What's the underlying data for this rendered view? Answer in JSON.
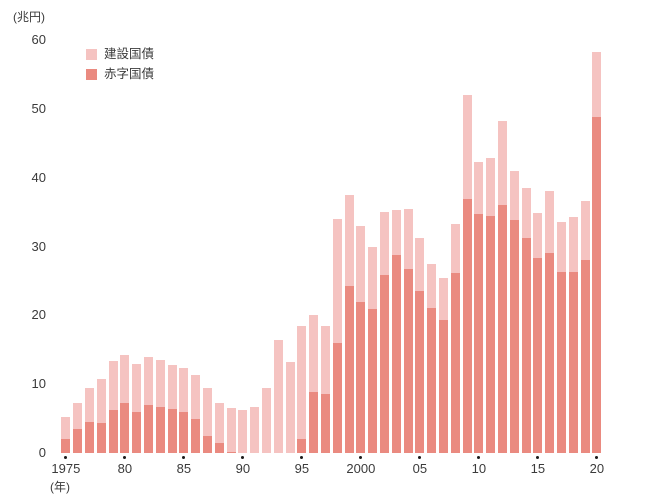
{
  "chart_data": {
    "type": "bar",
    "stacked": true,
    "title": "",
    "unit_label": "(兆円)",
    "x_unit_label": "(年)",
    "ylim": [
      0,
      60
    ],
    "yticks": [
      0,
      10,
      20,
      30,
      40,
      50,
      60
    ],
    "grid": false,
    "legend_position": "top-left",
    "years": [
      1975,
      1976,
      1977,
      1978,
      1979,
      1980,
      1981,
      1982,
      1983,
      1984,
      1985,
      1986,
      1987,
      1988,
      1989,
      1990,
      1991,
      1992,
      1993,
      1994,
      1995,
      1996,
      1997,
      1998,
      1999,
      2000,
      2001,
      2002,
      2003,
      2004,
      2005,
      2006,
      2007,
      2008,
      2009,
      2010,
      2011,
      2012,
      2013,
      2014,
      2015,
      2016,
      2017,
      2018,
      2019,
      2020
    ],
    "xticks": [
      {
        "year": 1975,
        "label": "1975"
      },
      {
        "year": 1980,
        "label": "80"
      },
      {
        "year": 1985,
        "label": "85"
      },
      {
        "year": 1990,
        "label": "90"
      },
      {
        "year": 1995,
        "label": "95"
      },
      {
        "year": 2000,
        "label": "2000"
      },
      {
        "year": 2005,
        "label": "05"
      },
      {
        "year": 2010,
        "label": "10"
      },
      {
        "year": 2015,
        "label": "15"
      },
      {
        "year": 2020,
        "label": "20"
      }
    ],
    "series": [
      {
        "name": "建設国債",
        "color": "#f5c3c1",
        "stack_order": "top",
        "values": [
          3.2,
          3.7,
          5.0,
          6.4,
          7.1,
          7.0,
          7.0,
          7.0,
          6.8,
          6.4,
          6.3,
          6.3,
          6.9,
          5.7,
          6.4,
          6.3,
          6.7,
          9.5,
          16.4,
          13.2,
          16.5,
          11.3,
          10.0,
          18.0,
          13.2,
          11.1,
          9.1,
          9.2,
          6.6,
          8.7,
          7.8,
          6.4,
          6.1,
          7.1,
          15.1,
          7.6,
          8.4,
          12.3,
          7.0,
          7.2,
          6.5,
          8.9,
          7.3,
          8.0,
          8.6,
          9.4
        ]
      },
      {
        "name": "赤字国債",
        "color": "#ea8a80",
        "stack_order": "bottom",
        "values": [
          2.1,
          3.5,
          4.5,
          4.3,
          6.3,
          7.2,
          5.9,
          7.0,
          6.7,
          6.4,
          6.0,
          5.0,
          2.5,
          1.5,
          0.2,
          0,
          0,
          0,
          0,
          0,
          2.0,
          8.8,
          8.5,
          16.0,
          24.3,
          21.9,
          20.9,
          25.8,
          28.7,
          26.8,
          23.5,
          21.0,
          19.3,
          26.1,
          36.9,
          34.7,
          34.4,
          36.0,
          33.9,
          31.3,
          28.4,
          29.1,
          26.3,
          26.3,
          28.0,
          48.8
        ]
      }
    ],
    "text_color": "#3b3b3b"
  }
}
